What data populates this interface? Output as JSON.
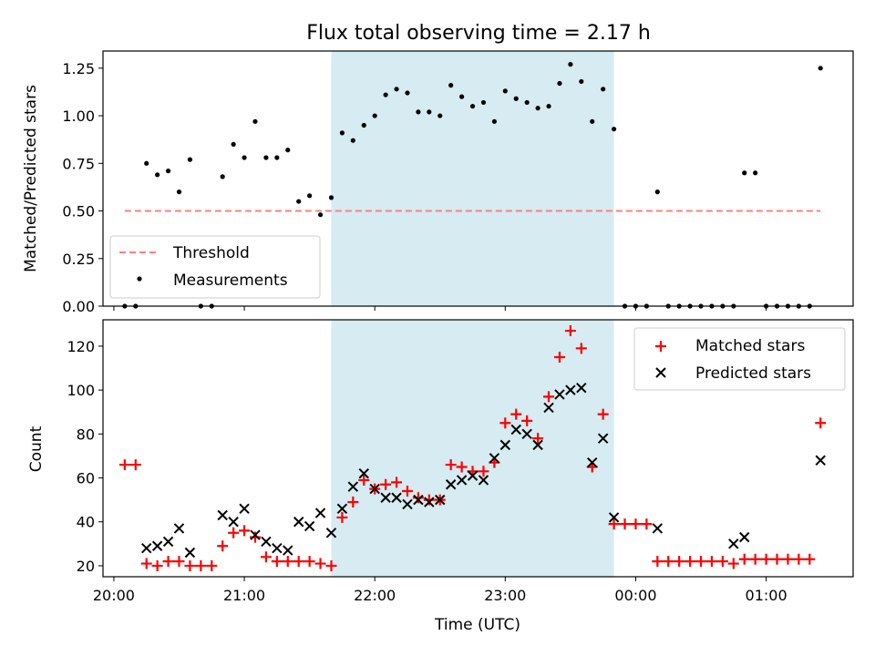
{
  "chart_data": [
    {
      "type": "scatter",
      "title": "Flux total observing time = 2.17 h",
      "xlabel": "",
      "ylabel": "Matched/Predicted stars",
      "xlim": [
        "19:55",
        "01:40"
      ],
      "ylim": [
        0,
        1.34
      ],
      "yticks": [
        "0.00",
        "0.25",
        "0.50",
        "0.75",
        "1.00",
        "1.25"
      ],
      "shaded_span": [
        "21:40",
        "23:50"
      ],
      "shaded_color": "#add8e6",
      "legend": {
        "location": "lower-left",
        "entries": [
          "Threshold",
          "Measurements"
        ]
      },
      "threshold": {
        "name": "Threshold",
        "value": 0.5,
        "x_range": [
          "20:05",
          "01:25"
        ],
        "color": "#ff7f7f"
      },
      "series": [
        {
          "name": "Measurements",
          "color": "#000000",
          "x": [
            "20:05",
            "20:10",
            "20:15",
            "20:20",
            "20:25",
            "20:30",
            "20:35",
            "20:40",
            "20:45",
            "20:50",
            "20:55",
            "21:00",
            "21:05",
            "21:10",
            "21:15",
            "21:20",
            "21:25",
            "21:30",
            "21:35",
            "21:40",
            "21:45",
            "21:50",
            "21:55",
            "22:00",
            "22:05",
            "22:10",
            "22:15",
            "22:20",
            "22:25",
            "22:30",
            "22:35",
            "22:40",
            "22:45",
            "22:50",
            "22:55",
            "23:00",
            "23:05",
            "23:10",
            "23:15",
            "23:20",
            "23:25",
            "23:30",
            "23:35",
            "23:40",
            "23:45",
            "23:50",
            "23:55",
            "00:00",
            "00:05",
            "00:10",
            "00:15",
            "00:20",
            "00:25",
            "00:30",
            "00:35",
            "00:40",
            "00:45",
            "00:50",
            "00:55",
            "01:00",
            "01:05",
            "01:10",
            "01:15",
            "01:20",
            "01:25"
          ],
          "y": [
            0,
            0,
            0.75,
            0.69,
            0.71,
            0.6,
            0.77,
            0,
            0,
            0.68,
            0.85,
            0.78,
            0.97,
            0.78,
            0.78,
            0.82,
            0.55,
            0.58,
            0.48,
            0.57,
            0.91,
            0.87,
            0.95,
            1.0,
            1.11,
            1.14,
            1.12,
            1.02,
            1.02,
            1.0,
            1.16,
            1.1,
            1.05,
            1.07,
            0.97,
            1.13,
            1.09,
            1.07,
            1.04,
            1.05,
            1.17,
            1.27,
            1.18,
            0.97,
            1.14,
            0.93,
            0,
            0,
            0,
            0.6,
            0,
            0,
            0,
            0,
            0,
            0,
            0,
            0.7,
            0.7,
            0,
            0,
            0,
            0,
            0,
            1.25
          ]
        }
      ]
    },
    {
      "type": "scatter",
      "title": "",
      "xlabel": "Time (UTC)",
      "ylabel": "Count",
      "xlim": [
        "19:55",
        "01:40"
      ],
      "ylim": [
        15,
        132
      ],
      "xticks": [
        "20:00",
        "21:00",
        "22:00",
        "23:00",
        "00:00",
        "01:00"
      ],
      "yticks": [
        "20",
        "40",
        "60",
        "80",
        "100",
        "120"
      ],
      "shaded_span": [
        "21:40",
        "23:50"
      ],
      "shaded_color": "#add8e6",
      "legend": {
        "location": "top-right",
        "entries": [
          "Matched stars",
          "Predicted stars"
        ]
      },
      "series": [
        {
          "name": "Matched stars",
          "marker": "+",
          "color": "#ff0000",
          "x": [
            "20:05",
            "20:10",
            "20:15",
            "20:20",
            "20:25",
            "20:30",
            "20:35",
            "20:40",
            "20:45",
            "20:50",
            "20:55",
            "21:00",
            "21:05",
            "21:10",
            "21:15",
            "21:20",
            "21:25",
            "21:30",
            "21:35",
            "21:40",
            "21:45",
            "21:50",
            "21:55",
            "22:00",
            "22:05",
            "22:10",
            "22:15",
            "22:20",
            "22:25",
            "22:30",
            "22:35",
            "22:40",
            "22:45",
            "22:50",
            "22:55",
            "23:00",
            "23:05",
            "23:10",
            "23:15",
            "23:20",
            "23:25",
            "23:30",
            "23:35",
            "23:40",
            "23:45",
            "23:50",
            "23:55",
            "00:00",
            "00:05",
            "00:10",
            "00:15",
            "00:20",
            "00:25",
            "00:30",
            "00:35",
            "00:40",
            "00:45",
            "00:50",
            "00:55",
            "01:00",
            "01:05",
            "01:10",
            "01:15",
            "01:20",
            "01:25"
          ],
          "y": [
            66,
            66,
            21,
            20,
            22,
            22,
            20,
            20,
            20,
            29,
            35,
            36,
            33,
            24,
            22,
            22,
            22,
            22,
            21,
            20,
            42,
            49,
            59,
            55,
            57,
            58,
            54,
            51,
            50,
            50,
            66,
            65,
            63,
            63,
            67,
            85,
            89,
            86,
            78,
            97,
            115,
            127,
            119,
            65,
            89,
            39,
            39,
            39,
            39,
            22,
            22,
            22,
            22,
            22,
            22,
            22,
            21,
            23,
            23,
            23,
            23,
            23,
            23,
            23,
            85
          ]
        },
        {
          "name": "Predicted stars",
          "marker": "x",
          "color": "#000000",
          "x": [
            "20:15",
            "20:20",
            "20:25",
            "20:30",
            "20:35",
            "20:50",
            "20:55",
            "21:00",
            "21:05",
            "21:10",
            "21:15",
            "21:20",
            "21:25",
            "21:30",
            "21:35",
            "21:40",
            "21:45",
            "21:50",
            "21:55",
            "22:00",
            "22:05",
            "22:10",
            "22:15",
            "22:20",
            "22:25",
            "22:30",
            "22:35",
            "22:40",
            "22:45",
            "22:50",
            "22:55",
            "23:00",
            "23:05",
            "23:10",
            "23:15",
            "23:20",
            "23:25",
            "23:30",
            "23:35",
            "23:40",
            "23:45",
            "23:50",
            "00:10",
            "00:45",
            "00:50",
            "01:25"
          ],
          "y": [
            28,
            29,
            31,
            37,
            26,
            43,
            40,
            46,
            34,
            31,
            28,
            27,
            40,
            38,
            44,
            35,
            46,
            56,
            62,
            55,
            51,
            51,
            48,
            50,
            49,
            50,
            57,
            59,
            61,
            59,
            69,
            75,
            82,
            80,
            75,
            92,
            98,
            100,
            101,
            67,
            78,
            42,
            37,
            30,
            33,
            68
          ]
        }
      ]
    }
  ]
}
